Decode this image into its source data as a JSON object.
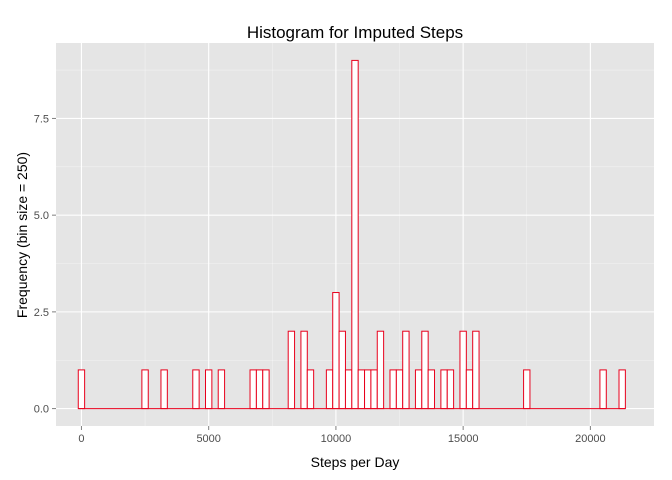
{
  "chart_data": {
    "type": "bar",
    "title": "Histogram for Imputed Steps",
    "xlabel": "Steps per Day",
    "ylabel": "Frequency (bin size = 250)",
    "bin_width": 250,
    "xlim": [
      -1000,
      22500
    ],
    "ylim": [
      -0.45,
      9.45
    ],
    "x_ticks": [
      0,
      5000,
      10000,
      15000,
      20000
    ],
    "x_tick_labels": [
      "0",
      "5000",
      "10000",
      "15000",
      "20000"
    ],
    "y_ticks": [
      0,
      2.5,
      5,
      7.5
    ],
    "y_tick_labels": [
      "0.0",
      "2.5",
      "5.0",
      "7.5"
    ],
    "grid": true,
    "bar_fill": "#ffffff",
    "bar_stroke": "#e8001c",
    "panel_background": "#e5e5e5",
    "gridline_color": "#ffffff",
    "bins": [
      {
        "x": 0,
        "count": 1
      },
      {
        "x": 2500,
        "count": 1
      },
      {
        "x": 3250,
        "count": 1
      },
      {
        "x": 4500,
        "count": 1
      },
      {
        "x": 5000,
        "count": 1
      },
      {
        "x": 5500,
        "count": 1
      },
      {
        "x": 6750,
        "count": 1
      },
      {
        "x": 7000,
        "count": 1
      },
      {
        "x": 7250,
        "count": 1
      },
      {
        "x": 8250,
        "count": 2
      },
      {
        "x": 8750,
        "count": 2
      },
      {
        "x": 9000,
        "count": 1
      },
      {
        "x": 9750,
        "count": 1
      },
      {
        "x": 10000,
        "count": 3
      },
      {
        "x": 10250,
        "count": 2
      },
      {
        "x": 10500,
        "count": 1
      },
      {
        "x": 10750,
        "count": 9
      },
      {
        "x": 11000,
        "count": 1
      },
      {
        "x": 11250,
        "count": 1
      },
      {
        "x": 11500,
        "count": 1
      },
      {
        "x": 11750,
        "count": 2
      },
      {
        "x": 12250,
        "count": 1
      },
      {
        "x": 12500,
        "count": 1
      },
      {
        "x": 12750,
        "count": 2
      },
      {
        "x": 13250,
        "count": 1
      },
      {
        "x": 13500,
        "count": 2
      },
      {
        "x": 13750,
        "count": 1
      },
      {
        "x": 14250,
        "count": 1
      },
      {
        "x": 14500,
        "count": 1
      },
      {
        "x": 15000,
        "count": 2
      },
      {
        "x": 15250,
        "count": 1
      },
      {
        "x": 15500,
        "count": 2
      },
      {
        "x": 17500,
        "count": 1
      },
      {
        "x": 20500,
        "count": 1
      },
      {
        "x": 21250,
        "count": 1
      }
    ]
  }
}
